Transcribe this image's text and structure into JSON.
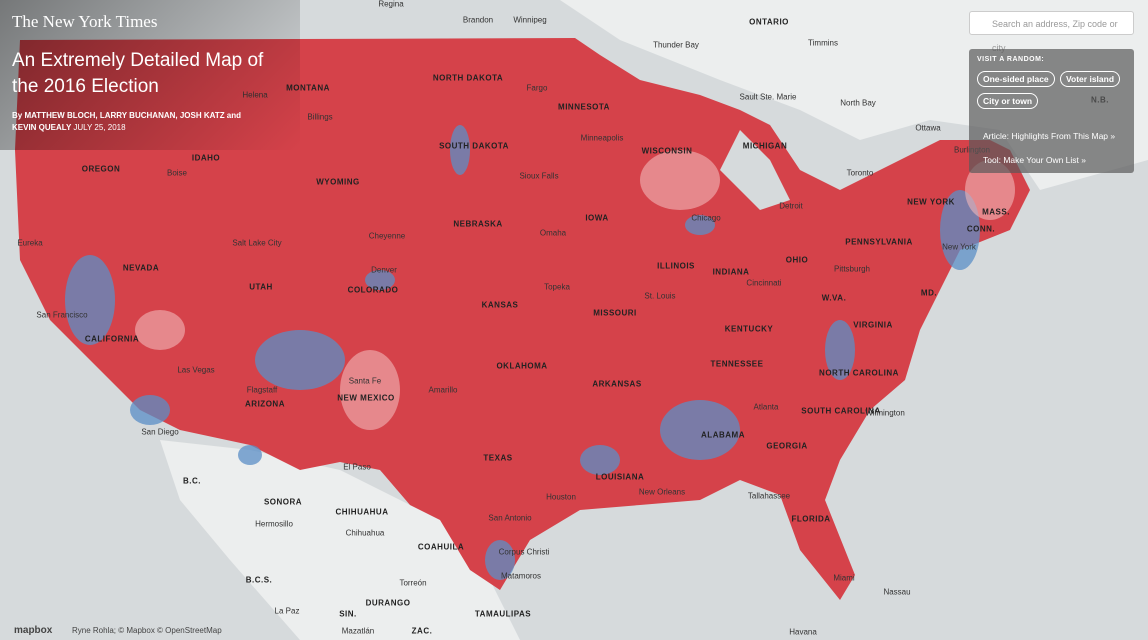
{
  "header": {
    "masthead": "The New York Times",
    "title": "An Extremely Detailed Map of the 2016 Election",
    "byline": "By MATTHEW BLOCH, LARRY BUCHANAN, JOSH KATZ and KEVIN QUEALY",
    "date": "JULY 25, 2018"
  },
  "search": {
    "placeholder": "Search an address, Zip code or city"
  },
  "panel": {
    "heading": "VISIT A RANDOM:",
    "buttons": [
      "One-sided place",
      "Voter island",
      "City or town"
    ],
    "links": [
      "Article: Highlights From This Map »",
      "Tool: Make Your Own List »"
    ]
  },
  "footer": {
    "logo": "mapbox",
    "attribution": "Ryne Rohla; © Mapbox © OpenStreetMap"
  },
  "map_labels": {
    "regions": [
      "MONTANA",
      "NORTH DAKOTA",
      "MINNESOTA",
      "WISCONSIN",
      "MICHIGAN",
      "IDAHO",
      "OREGON",
      "WYOMING",
      "SOUTH DAKOTA",
      "IOWA",
      "NEBRASKA",
      "NEVADA",
      "UTAH",
      "COLORADO",
      "KANSAS",
      "MISSOURI",
      "ILLINOIS",
      "INDIANA",
      "OHIO",
      "PENNSYLVANIA",
      "NEW YORK",
      "CALIFORNIA",
      "ARIZONA",
      "NEW MEXICO",
      "OKLAHOMA",
      "ARKANSAS",
      "TENNESSEE",
      "KENTUCKY",
      "VIRGINIA",
      "W.VA.",
      "NORTH CAROLINA",
      "SOUTH CAROLINA",
      "GEORGIA",
      "ALABAMA",
      "TEXAS",
      "LOUISIANA",
      "FLORIDA",
      "MASS.",
      "CONN.",
      "MD.",
      "N.B.",
      "ONTARIO",
      "SONORA",
      "CHIHUAHUA",
      "COAHUILA",
      "B.C.",
      "B.C.S.",
      "DURANGO",
      "TAMAULIPAS",
      "SIN.",
      "ZAC."
    ],
    "cities": [
      "Regina",
      "Brandon",
      "Winnipeg",
      "Thunder Bay",
      "Timmins",
      "Sault Ste. Marie",
      "North Bay",
      "Ottawa",
      "Toronto",
      "Fargo",
      "Helena",
      "Billings",
      "Minneapolis",
      "Sioux Falls",
      "Boise",
      "Chicago",
      "Detroit",
      "Eureka",
      "Salt Lake City",
      "Cheyenne",
      "Denver",
      "Omaha",
      "Topeka",
      "St. Louis",
      "Cincinnati",
      "Pittsburgh",
      "New York",
      "Burlington",
      "San Francisco",
      "Las Vegas",
      "Flagstaff",
      "San Diego",
      "Santa Fe",
      "Amarillo",
      "El Paso",
      "Atlanta",
      "Wilmington",
      "Tallahassee",
      "New Orleans",
      "Houston",
      "San Antonio",
      "Corpus Christi",
      "Matamoros",
      "Hermosillo",
      "Chihuahua",
      "Torreón",
      "La Paz",
      "Mazatlán",
      "Miami",
      "Nassau",
      "Havana"
    ]
  }
}
